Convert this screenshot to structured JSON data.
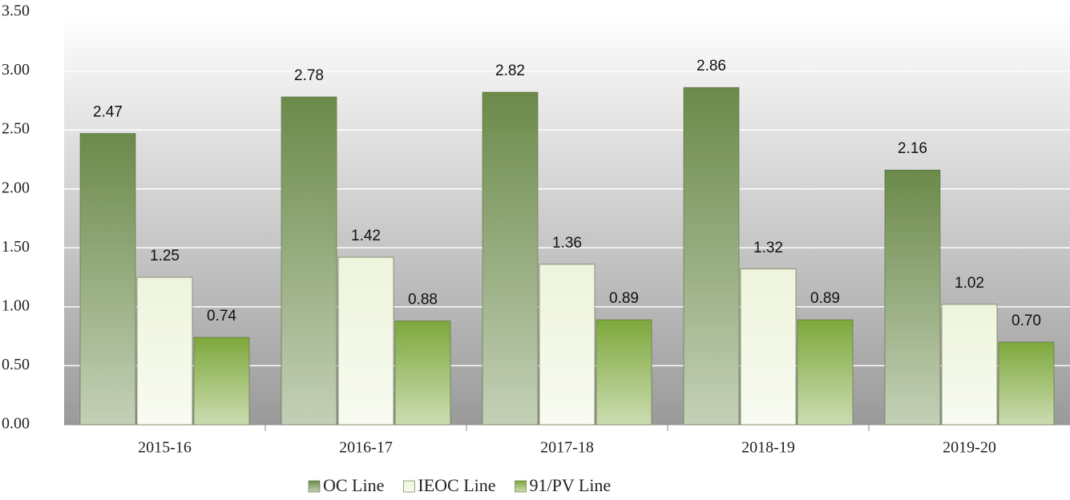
{
  "chart_data": {
    "type": "bar",
    "categories": [
      "2015-16",
      "2016-17",
      "2017-18",
      "2018-19",
      "2019-20"
    ],
    "series": [
      {
        "name": "OC Line",
        "color": "#6b8a4a",
        "values": [
          2.47,
          2.78,
          2.82,
          2.86,
          2.16
        ],
        "value_labels": [
          "2.47",
          "2.78",
          "2.82",
          "2.86",
          "2.16"
        ]
      },
      {
        "name": "IEOC Line",
        "color": "#eef4dc",
        "values": [
          1.25,
          1.42,
          1.36,
          1.32,
          1.02
        ],
        "value_labels": [
          "1.25",
          "1.42",
          "1.36",
          "1.32",
          "1.02"
        ]
      },
      {
        "name": "91/PV Line",
        "color": "#7ea83c",
        "values": [
          0.74,
          0.88,
          0.89,
          0.89,
          0.7
        ],
        "value_labels": [
          "0.74",
          "0.88",
          "0.89",
          "0.89",
          "0.70"
        ]
      }
    ],
    "ylim": [
      0,
      3.5
    ],
    "yticks": [
      {
        "value": 0,
        "label": "0.00"
      },
      {
        "value": 0.5,
        "label": "0.50"
      },
      {
        "value": 1,
        "label": "1.00"
      },
      {
        "value": 1.5,
        "label": "1.50"
      },
      {
        "value": 2,
        "label": "2.00"
      },
      {
        "value": 2.5,
        "label": "2.50"
      },
      {
        "value": 3,
        "label": "3.00"
      },
      {
        "value": 3.5,
        "label": "3.50"
      }
    ],
    "grid": true,
    "legend": "bottom"
  }
}
